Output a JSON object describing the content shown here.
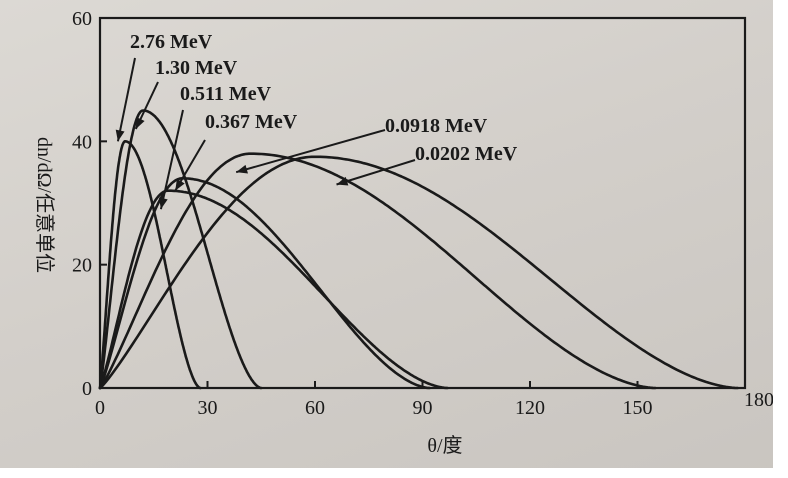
{
  "chart_data": {
    "type": "line",
    "xlabel": "θ/度",
    "ylabel": "dn/dΩ/任意单位",
    "xlim": [
      0,
      180
    ],
    "ylim": [
      0,
      60
    ],
    "xticks": [
      "0",
      "30",
      "60",
      "90",
      "120",
      "150",
      "180"
    ],
    "yticks": [
      "0",
      "20",
      "40",
      "60"
    ],
    "grid": false,
    "series": [
      {
        "name": "2.76 MeV",
        "peak_x": 7,
        "peak_y": 40,
        "end_x": 28,
        "label_at": [
          5,
          40
        ]
      },
      {
        "name": "1.30 MeV",
        "peak_x": 12,
        "peak_y": 45,
        "end_x": 45,
        "label_at": [
          10,
          42
        ]
      },
      {
        "name": "0.511 MeV",
        "peak_x": 19,
        "peak_y": 32,
        "end_x": 97,
        "label_at": [
          17,
          29
        ]
      },
      {
        "name": "0.367 MeV",
        "peak_x": 23,
        "peak_y": 34,
        "end_x": 92,
        "label_at": [
          21,
          32
        ]
      },
      {
        "name": "0.0918 MeV",
        "peak_x": 42,
        "peak_y": 38,
        "end_x": 155,
        "label_at": [
          38,
          35
        ]
      },
      {
        "name": "0.0202 MeV",
        "peak_x": 60,
        "peak_y": 37.5,
        "end_x": 178,
        "label_at": [
          66,
          33
        ]
      }
    ]
  }
}
